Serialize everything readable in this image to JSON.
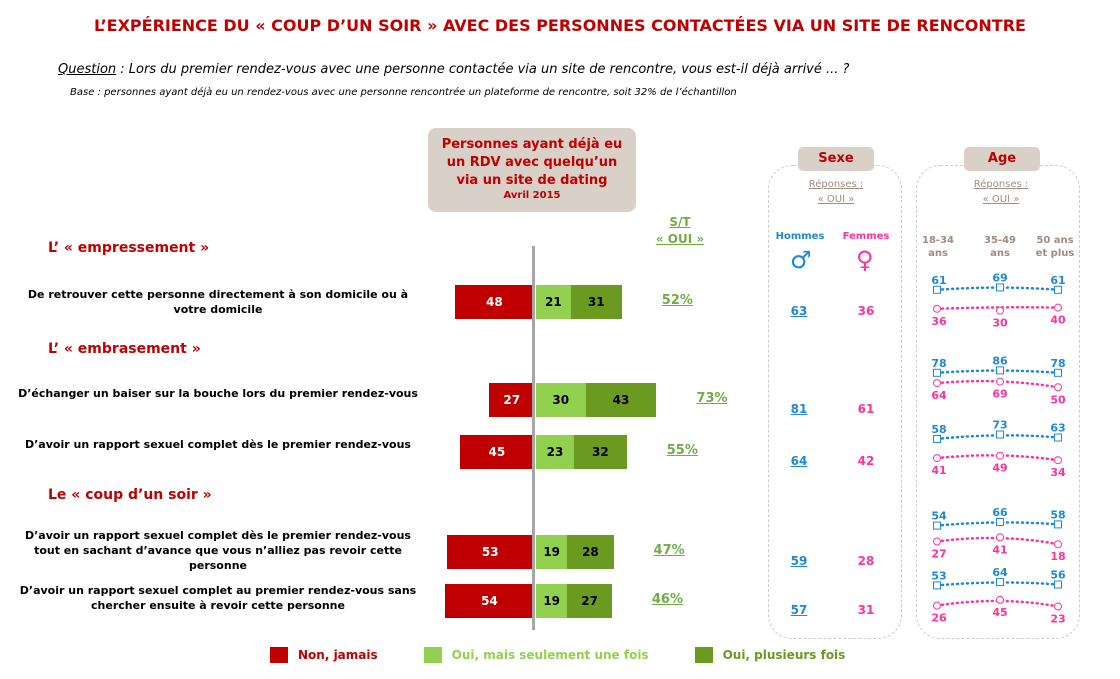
{
  "title": "L’EXPÉRIENCE DU « COUP D’UN SOIR » AVEC DES PERSONNES CONTACTÉES VIA UN SITE DE RENCONTRE",
  "question_label": "Question",
  "question_text": " : Lors du premier rendez-vous avec une personne contactée via un site de rencontre, vous est-il déjà arrivé ... ?",
  "base": "Base : personnes ayant déjà eu un rendez-vous avec une personne rencontrée un plateforme de rencontre, soit 32% de l’échantillon",
  "header_box": {
    "l1": "Personnes ayant déjà eu",
    "l2": "un RDV avec quelqu’un",
    "l3": "via un site de dating",
    "date": "Avril 2015"
  },
  "st": {
    "l1": "S/T",
    "l2": "« OUI »"
  },
  "sections": [
    "L’ « empressement »",
    "L’ « embrasement »",
    "Le « coup d’un soir »"
  ],
  "colors": {
    "red": "#c00000",
    "light_green": "#92d050",
    "dark_green": "#6a9a20",
    "blue": "#1f88d8",
    "pink": "#ff3399"
  },
  "chart_data": {
    "type": "bar",
    "stacked": "diverging",
    "series": [
      {
        "name": "Non, jamais"
      },
      {
        "name": "Oui, mais seulement une fois"
      },
      {
        "name": "Oui, plusieurs fois"
      }
    ],
    "rows": [
      {
        "label": "De retrouver cette personne directement à son domicile ou à votre domicile",
        "non": 48,
        "once": 21,
        "several": 31,
        "st": "52%",
        "hommes": "63",
        "femmes": "36",
        "age_h": [
          61,
          69,
          61
        ],
        "age_f": [
          36,
          30,
          40
        ]
      },
      {
        "label": "D’échanger un baiser sur la bouche lors du premier rendez-vous",
        "non": 27,
        "once": 30,
        "several": 43,
        "st": "73%",
        "hommes": "81",
        "femmes": "61",
        "age_h": [
          78,
          86,
          78
        ],
        "age_f": [
          64,
          69,
          50
        ]
      },
      {
        "label": "D’avoir un rapport sexuel complet dès le premier rendez-vous",
        "non": 45,
        "once": 23,
        "several": 32,
        "st": "55%",
        "hommes": "64",
        "femmes": "42",
        "age_h": [
          58,
          73,
          63
        ],
        "age_f": [
          41,
          49,
          34
        ]
      },
      {
        "label": "D’avoir un rapport sexuel complet dès le premier rendez-vous tout en sachant d’avance que vous n’alliez pas revoir cette personne",
        "non": 53,
        "once": 19,
        "several": 28,
        "st": "47%",
        "hommes": "59",
        "femmes": "28",
        "age_h": [
          54,
          66,
          58
        ],
        "age_f": [
          27,
          41,
          18
        ]
      },
      {
        "label": "D’avoir un rapport sexuel complet au premier rendez-vous sans chercher ensuite à revoir cette personne",
        "non": 54,
        "once": 19,
        "several": 27,
        "st": "46%",
        "hommes": "57",
        "femmes": "31",
        "age_h": [
          53,
          64,
          56
        ],
        "age_f": [
          26,
          45,
          23
        ]
      }
    ]
  },
  "sexe": {
    "tab": "Sexe",
    "resp1": "Réponses :",
    "resp2": "« OUI »",
    "hommes": "Hommes",
    "femmes": "Femmes"
  },
  "age": {
    "tab": "Age",
    "resp1": "Réponses :",
    "resp2": "« OUI »",
    "groups": [
      [
        "18-34",
        "ans"
      ],
      [
        "35-49",
        "ans"
      ],
      [
        "50 ans",
        "et plus"
      ]
    ]
  },
  "legend": [
    "Non, jamais",
    "Oui, mais seulement une fois",
    "Oui, plusieurs fois"
  ]
}
